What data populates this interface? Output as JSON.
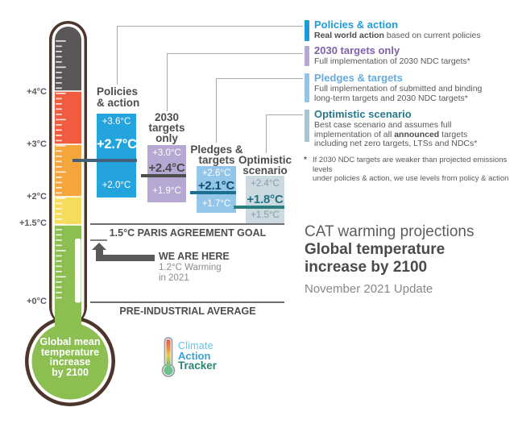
{
  "chart_data": {
    "type": "bar",
    "title": "CAT warming projections — Global temperature increase by 2100",
    "subtitle": "November 2021 Update",
    "ylabel": "Global mean temperature increase by 2100 (°C vs pre-industrial)",
    "ylim": [
      0,
      5
    ],
    "axis_ticks": [
      "+4°C",
      "+3°C",
      "+2°C",
      "+1.5°C",
      "+0°C"
    ],
    "series": [
      {
        "name": "Policies & action",
        "low": 2.0,
        "central": 2.7,
        "high": 3.6,
        "color": "#23A4DC"
      },
      {
        "name": "2030 targets only",
        "low": 1.9,
        "central": 2.4,
        "high": 3.0,
        "color": "#B5A8D2"
      },
      {
        "name": "Pledges & targets",
        "low": 1.7,
        "central": 2.1,
        "high": 2.6,
        "color": "#93C6E9"
      },
      {
        "name": "Optimistic scenario",
        "low": 1.5,
        "central": 1.8,
        "high": 2.4,
        "color": "#CBD9E0"
      }
    ],
    "reference_lines": [
      {
        "value": 1.5,
        "label": "1.5°C PARIS AGREEMENT GOAL"
      },
      {
        "value": 1.2,
        "label": "WE ARE HERE — 1.2°C Warming in 2021"
      },
      {
        "value": 0,
        "label": "PRE-INDUSTRIAL AVERAGE"
      }
    ],
    "legend_position": "right"
  },
  "scale": {
    "labels": [
      "+4°C",
      "+3°C",
      "+2°C",
      "+1.5°C",
      "+0°C"
    ]
  },
  "thermometer": {
    "bulb_label": "Global mean\ntemperature\nincrease\nby 2100"
  },
  "bars": [
    {
      "label": "Policies\n& action",
      "high": "+3.6°C",
      "central": "+2.7°C",
      "low": "+2.0°C"
    },
    {
      "label": "2030\ntargets\nonly",
      "high": "+3.0°C",
      "central": "+2.4°C",
      "low": "+1.9°C"
    },
    {
      "label": "Pledges &\ntargets",
      "high": "+2.6°C",
      "central": "+2.1°C",
      "low": "+1.7°C"
    },
    {
      "label": "Optimistic\nscenario",
      "high": "+2.4°C",
      "central": "+1.8°C",
      "low": "+1.5°C"
    }
  ],
  "legend": {
    "items": [
      {
        "title": "Policies & action",
        "desc_pre": "",
        "desc_bold": "Real world action",
        "desc_post": " based on current policies"
      },
      {
        "title": "2030 targets only",
        "desc_pre": "Full implementation of 2030 NDC targets*",
        "desc_bold": "",
        "desc_post": ""
      },
      {
        "title": "Pledges & targets",
        "desc_pre": "Full implementation of submitted and binding\nlong-term targets and 2030 NDC targets*",
        "desc_bold": "",
        "desc_post": ""
      },
      {
        "title": "Optimistic scenario",
        "desc_pre": "Best case scenario and assumes full\nimplementation of all ",
        "desc_bold": "announced",
        "desc_post": " targets\nincluding net zero targets, LTSs and NDCs*"
      }
    ]
  },
  "footnote": {
    "marker": "*",
    "text": "If 2030 NDC targets are weaker than projected emissions levels\nunder policies & action, we use levels from policy & action"
  },
  "annotations": {
    "paris_goal": "1.5°C PARIS AGREEMENT GOAL",
    "we_are_here": "WE ARE HERE",
    "current_warming": "1.2°C Warming",
    "current_year": "in 2021",
    "preindustrial": "PRE-INDUSTRIAL AVERAGE"
  },
  "title_block": {
    "line1": "CAT warming projections",
    "line2": "Global temperature\nincrease by 2100",
    "line3": "November 2021 Update"
  },
  "logo": {
    "line1": "Climate",
    "line2": "Action",
    "line3": "Tracker"
  },
  "colors": {
    "policies_action_bar": "#23A4DC",
    "targets2030_bar": "#B5A8D2",
    "pledges_targets_bar": "#93C6E9",
    "optimistic_bar": "#CBD9E0",
    "policies_line": "#44607A",
    "targets2030_line": "#4D4D4D",
    "pledges_line": "#1B6E8E",
    "optimistic_line": "#2A8080",
    "thermo_gray": "#5B5658",
    "thermo_red": "#F15B40",
    "thermo_orange": "#F4A53C",
    "thermo_yellow": "#F6DB5C",
    "thermo_green": "#8CBE52",
    "thermo_outline": "#4E352B",
    "legend_title_1": "#1E9CD7",
    "legend_title_2": "#7C61A9",
    "legend_title_3": "#68AADA",
    "legend_title_4": "#27798A",
    "text_dark": "#4D4D4D",
    "text_gray": "#58595B"
  }
}
